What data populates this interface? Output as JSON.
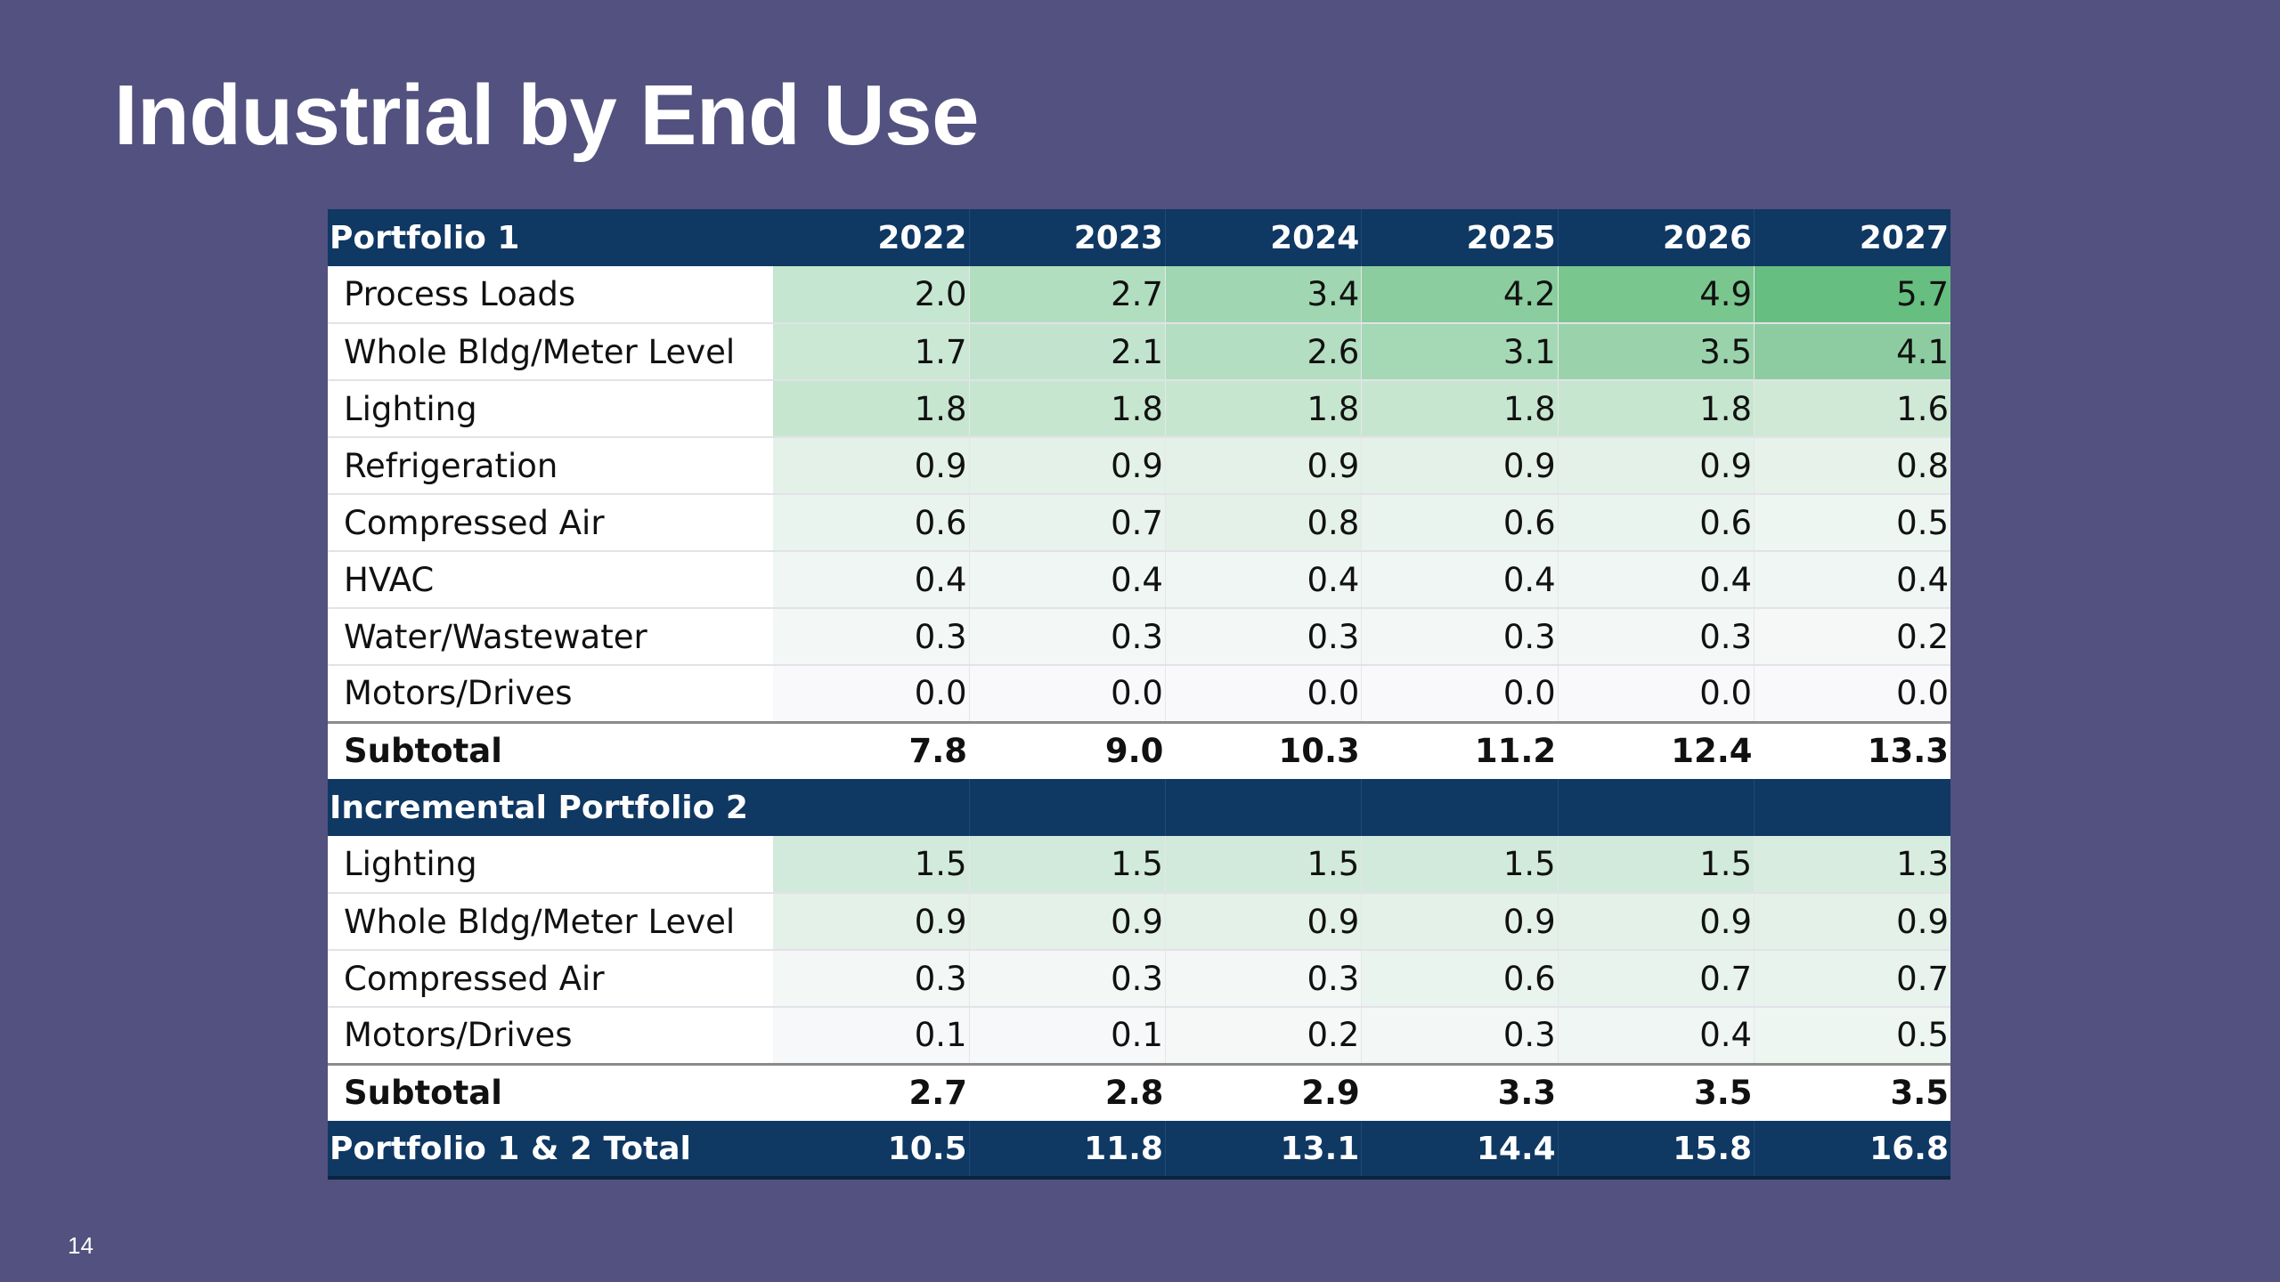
{
  "slide": {
    "title": "Industrial by End Use",
    "page_number": "14"
  },
  "table": {
    "years": [
      "2022",
      "2023",
      "2024",
      "2025",
      "2026",
      "2027"
    ],
    "portfolio1": {
      "header": "Portfolio 1",
      "rows": [
        {
          "label": "Process Loads",
          "values": [
            "2.0",
            "2.7",
            "3.4",
            "4.2",
            "4.9",
            "5.7"
          ],
          "shades": [
            "#c5e6d0",
            "#b2dec0",
            "#a0d6b1",
            "#8bcd9f",
            "#79c68f",
            "#66be80"
          ]
        },
        {
          "label": "Whole Bldg/Meter Level",
          "values": [
            "1.7",
            "2.1",
            "2.6",
            "3.1",
            "3.5",
            "4.1"
          ],
          "shades": [
            "#cbe8d4",
            "#c2e4ce",
            "#b3dec1",
            "#a5d8b4",
            "#9ad3ab",
            "#8dcca0"
          ]
        },
        {
          "label": "Lighting",
          "values": [
            "1.8",
            "1.8",
            "1.8",
            "1.8",
            "1.8",
            "1.6"
          ],
          "shades": [
            "#c7e6d0",
            "#c7e6d0",
            "#c7e6d0",
            "#c7e6d0",
            "#c7e6d0",
            "#cfe9d6"
          ]
        },
        {
          "label": "Refrigeration",
          "values": [
            "0.9",
            "0.9",
            "0.9",
            "0.9",
            "0.9",
            "0.8"
          ],
          "shades": [
            "#e3f1e8",
            "#e3f1e8",
            "#e3f1e8",
            "#e3f1e8",
            "#e3f1e8",
            "#e6f2ea"
          ]
        },
        {
          "label": "Compressed Air",
          "values": [
            "0.6",
            "0.7",
            "0.8",
            "0.6",
            "0.6",
            "0.5"
          ],
          "shades": [
            "#eaf4ee",
            "#e7f3ec",
            "#e4f1e9",
            "#eaf4ee",
            "#eaf4ee",
            "#eef6f1"
          ]
        },
        {
          "label": "HVAC",
          "values": [
            "0.4",
            "0.4",
            "0.4",
            "0.4",
            "0.4",
            "0.4"
          ],
          "shades": [
            "#f0f6f3",
            "#f0f6f3",
            "#f0f6f3",
            "#f0f6f3",
            "#f0f6f3",
            "#f0f6f3"
          ]
        },
        {
          "label": "Water/Wastewater",
          "values": [
            "0.3",
            "0.3",
            "0.3",
            "0.3",
            "0.3",
            "0.2"
          ],
          "shades": [
            "#f3f7f6",
            "#f3f7f6",
            "#f3f7f6",
            "#f3f7f6",
            "#f3f7f6",
            "#f6f8f8"
          ]
        },
        {
          "label": "Motors/Drives",
          "values": [
            "0.0",
            "0.0",
            "0.0",
            "0.0",
            "0.0",
            "0.0"
          ],
          "shades": [
            "#f9f9fc",
            "#f9f9fc",
            "#f9f9fc",
            "#f9f9fc",
            "#f9f9fc",
            "#f9f9fc"
          ]
        }
      ],
      "subtotal": {
        "label": "Subtotal",
        "values": [
          "7.8",
          "9.0",
          "10.3",
          "11.2",
          "12.4",
          "13.3"
        ]
      }
    },
    "portfolio2": {
      "header": "Incremental Portfolio 2",
      "rows": [
        {
          "label": "Lighting",
          "values": [
            "1.5",
            "1.5",
            "1.5",
            "1.5",
            "1.5",
            "1.3"
          ],
          "shades": [
            "#d1eadb",
            "#d1eadb",
            "#d1eadb",
            "#d1eadb",
            "#d1eadb",
            "#d8eddf"
          ]
        },
        {
          "label": "Whole Bldg/Meter Level",
          "values": [
            "0.9",
            "0.9",
            "0.9",
            "0.9",
            "0.9",
            "0.9"
          ],
          "shades": [
            "#e3f1e8",
            "#e3f1e8",
            "#e3f1e8",
            "#e3f1e8",
            "#e3f1e8",
            "#e3f1e8"
          ]
        },
        {
          "label": "Compressed Air",
          "values": [
            "0.3",
            "0.3",
            "0.3",
            "0.6",
            "0.7",
            "0.7"
          ],
          "shades": [
            "#f3f7f6",
            "#f3f7f6",
            "#f3f7f6",
            "#eaf4ee",
            "#e7f3ec",
            "#e7f3ec"
          ]
        },
        {
          "label": "Motors/Drives",
          "values": [
            "0.1",
            "0.1",
            "0.2",
            "0.3",
            "0.4",
            "0.5"
          ],
          "shades": [
            "#f7f8fa",
            "#f7f8fa",
            "#f6f8f8",
            "#f3f7f6",
            "#f0f6f3",
            "#eef6f1"
          ]
        }
      ],
      "subtotal": {
        "label": "Subtotal",
        "values": [
          "2.7",
          "2.8",
          "2.9",
          "3.3",
          "3.5",
          "3.5"
        ]
      }
    },
    "total": {
      "label": "Portfolio 1 & 2 Total",
      "values": [
        "10.5",
        "11.8",
        "13.1",
        "14.4",
        "15.8",
        "16.8"
      ]
    }
  },
  "colors": {
    "background": "#52517f",
    "header_band": "#0f3863"
  }
}
